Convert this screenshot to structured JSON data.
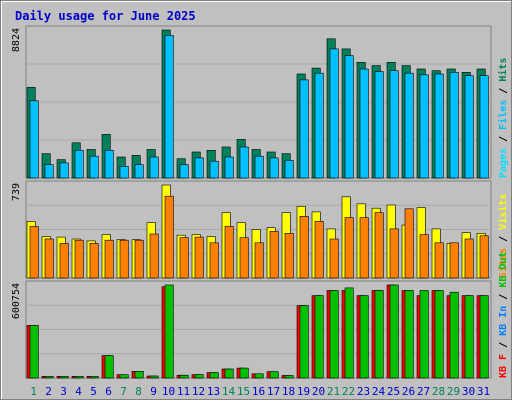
{
  "title": "Daily usage for June 2025",
  "colors": {
    "hits": "#00805c",
    "files": "#00c0ff",
    "pages": "#00e0ff",
    "visits": "#ffff00",
    "sites": "#ff8000",
    "kbin": "#0080ff",
    "kbout": "#00c000",
    "kbf": "#ff0000",
    "day_weekend": "#00805c",
    "day_weekday": "#0000cc"
  },
  "chart_data": {
    "type": "bar",
    "categories": [
      "1",
      "2",
      "3",
      "4",
      "5",
      "6",
      "7",
      "8",
      "9",
      "10",
      "11",
      "12",
      "13",
      "14",
      "15",
      "16",
      "17",
      "18",
      "19",
      "20",
      "21",
      "22",
      "23",
      "24",
      "25",
      "26",
      "27",
      "28",
      "29",
      "30",
      "31"
    ],
    "weekend_days": [
      "1",
      "7",
      "8",
      "14",
      "15",
      "21",
      "22",
      "28",
      "29"
    ],
    "panels": [
      {
        "id": "hits",
        "max_label": "8824",
        "ymax": 8824,
        "legend": [
          "Hits",
          "Files",
          "Pages"
        ],
        "series": [
          {
            "name": "Hits",
            "color": "#00805c",
            "values": [
              5400,
              1450,
              1100,
              2100,
              1700,
              2600,
              1250,
              1350,
              1700,
              8824,
              1150,
              1550,
              1650,
              1850,
              2300,
              1700,
              1550,
              1450,
              6200,
              6550,
              8300,
              7700,
              6900,
              6700,
              6900,
              6700,
              6500,
              6400,
              6500,
              6300,
              6500
            ]
          },
          {
            "name": "Files",
            "color": "#00c0ff",
            "values": [
              4600,
              800,
              900,
              1650,
              1300,
              1650,
              700,
              800,
              1250,
              8500,
              800,
              1200,
              1000,
              1250,
              1850,
              1300,
              1200,
              1050,
              5850,
              6250,
              7700,
              7300,
              6500,
              6350,
              6400,
              6250,
              6150,
              6200,
              6300,
              6100,
              6100
            ]
          }
        ]
      },
      {
        "id": "visits",
        "max_label": "739",
        "ymax": 739,
        "legend": [
          "Visits",
          "Sites",
          "KB Out"
        ],
        "series": [
          {
            "name": "Visits",
            "color": "#ffff00",
            "values": [
              450,
              330,
              325,
              310,
              295,
              345,
              305,
              305,
              440,
              739,
              340,
              345,
              330,
              520,
              440,
              385,
              400,
              520,
              570,
              525,
              390,
              645,
              590,
              555,
              580,
              420,
              560,
              390,
              275,
              360,
              355
            ]
          },
          {
            "name": "Sites",
            "color": "#ff8000",
            "values": [
              410,
              310,
              275,
              300,
              275,
              300,
              300,
              300,
              350,
              650,
              320,
              325,
              280,
              410,
              320,
              280,
              370,
              355,
              490,
              450,
              310,
              480,
              480,
              520,
              390,
              550,
              345,
              280,
              280,
              310,
              335
            ]
          }
        ]
      },
      {
        "id": "kbytes",
        "max_label": "600754",
        "ymax": 600754,
        "legend": [
          "KB In",
          "KB F"
        ],
        "series": [
          {
            "name": "KB F",
            "color": "#ff0000",
            "values": [
              340000,
              11000,
              11000,
              11000,
              11000,
              145000,
              21000,
              43000,
              13000,
              590000,
              18000,
              22000,
              35000,
              58000,
              64000,
              27000,
              41000,
              16000,
              468000,
              532000,
              565000,
              565000,
              532000,
              565000,
              600754,
              565000,
              532000,
              565000,
              532000,
              532000,
              532000
            ]
          },
          {
            "name": "KB Out",
            "color": "#00c000",
            "values": [
              340000,
              11000,
              11000,
              11000,
              11000,
              145000,
              21000,
              43000,
              13000,
              600754,
              18000,
              22000,
              35000,
              58000,
              64000,
              27000,
              41000,
              16000,
              468000,
              532000,
              565000,
              582000,
              532000,
              565000,
              600754,
              565000,
              565000,
              565000,
              554000,
              532000,
              532000
            ]
          }
        ]
      }
    ]
  }
}
